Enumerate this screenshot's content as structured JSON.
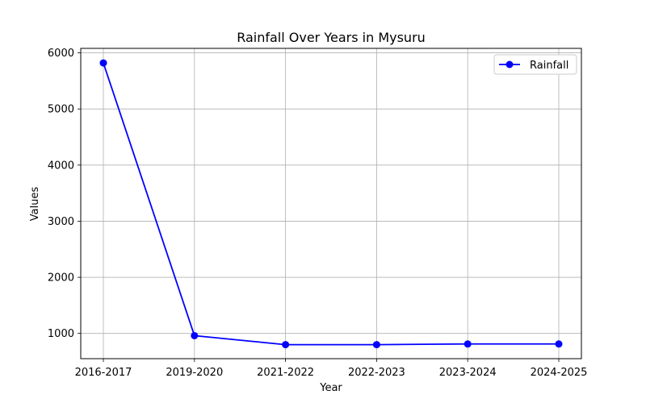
{
  "chart_data": {
    "type": "line",
    "title": "Rainfall Over Years in Mysuru",
    "xlabel": "Year",
    "ylabel": "Values",
    "categories": [
      "2016-2017",
      "2019-2020",
      "2021-2022",
      "2022-2023",
      "2023-2024",
      "2024-2025"
    ],
    "series": [
      {
        "name": "Rainfall",
        "color": "#0000ff",
        "marker": "circle",
        "values": [
          5820,
          960,
          800,
          800,
          812,
          812
        ]
      }
    ],
    "ylim": [
      550,
      6080
    ],
    "yticks": [
      1000,
      2000,
      3000,
      4000,
      5000,
      6000
    ],
    "ytick_labels": [
      "1000",
      "2000",
      "3000",
      "4000",
      "5000",
      "6000"
    ],
    "grid": true,
    "legend_position": "top-right"
  }
}
